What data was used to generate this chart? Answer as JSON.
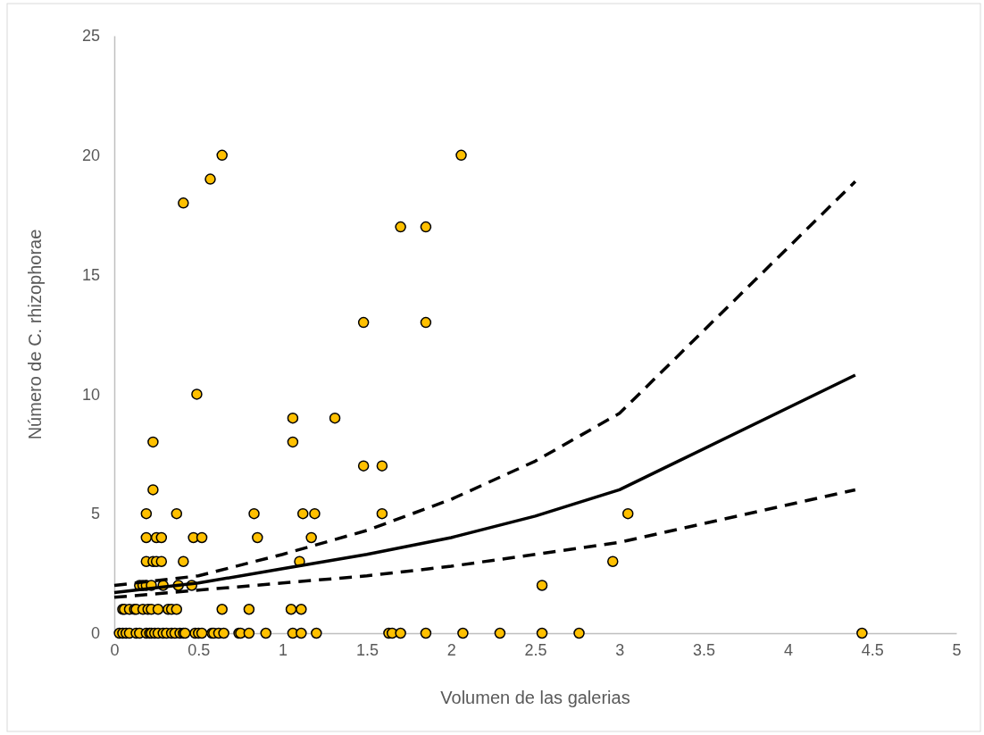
{
  "chart_data": {
    "type": "scatter",
    "xlabel": "Volumen de las galerias",
    "ylabel": "Número de C. rhizophorae",
    "xlim": [
      0,
      5
    ],
    "xticks": [
      0,
      0.5,
      1,
      1.5,
      2,
      2.5,
      3,
      3.5,
      4,
      4.5,
      5
    ],
    "ylim": [
      0,
      25
    ],
    "yticks": [
      0,
      5,
      10,
      15,
      20,
      25
    ],
    "grid": false,
    "series": [
      {
        "color": "#ffc000",
        "marker": "circle",
        "x": [
          0.64,
          2.06,
          0.57,
          0.41,
          1.7,
          1.85,
          1.48,
          1.85,
          0.49,
          1.06,
          1.31,
          0.23,
          1.06,
          1.48,
          1.59,
          0.23,
          0.19,
          0.37,
          0.83,
          1.12,
          1.19,
          1.59,
          3.05,
          0.19,
          0.25,
          0.28,
          0.47,
          0.52,
          0.85,
          1.17,
          0.19,
          0.23,
          0.25,
          0.28,
          0.41,
          1.1,
          2.96,
          0.15,
          0.17,
          0.19,
          0.22,
          0.29,
          0.38,
          0.46,
          2.54,
          0.05,
          0.06,
          0.09,
          0.12,
          0.13,
          0.17,
          0.2,
          0.22,
          0.26,
          0.32,
          0.34,
          0.37,
          0.64,
          0.8,
          1.05,
          1.11,
          0.03,
          0.05,
          0.07,
          0.09,
          0.13,
          0.15,
          0.19,
          0.21,
          0.22,
          0.24,
          0.26,
          0.29,
          0.31,
          0.34,
          0.36,
          0.39,
          0.41,
          0.42,
          0.48,
          0.5,
          0.52,
          0.58,
          0.59,
          0.62,
          0.65,
          0.74,
          0.75,
          0.8,
          0.9,
          1.06,
          1.11,
          1.2,
          1.63,
          1.65,
          1.7,
          1.85,
          2.07,
          2.29,
          2.54,
          2.76,
          4.44
        ],
        "values": [
          20,
          20,
          19,
          18,
          17,
          17,
          13,
          13,
          10,
          9,
          9,
          8,
          8,
          7,
          7,
          6,
          5,
          5,
          5,
          5,
          5,
          5,
          5,
          4,
          4,
          4,
          4,
          4,
          4,
          4,
          3,
          3,
          3,
          3,
          3,
          3,
          3,
          2,
          2,
          2,
          2,
          2,
          2,
          2,
          2,
          1,
          1,
          1,
          1,
          1,
          1,
          1,
          1,
          1,
          1,
          1,
          1,
          1,
          1,
          1,
          1,
          0,
          0,
          0,
          0,
          0,
          0,
          0,
          0,
          0,
          0,
          0,
          0,
          0,
          0,
          0,
          0,
          0,
          0,
          0,
          0,
          0,
          0,
          0,
          0,
          0,
          0,
          0,
          0,
          0,
          0,
          0,
          0,
          0,
          0,
          0,
          0,
          0,
          0,
          0,
          0,
          0
        ]
      },
      {
        "type": "line",
        "color": "#000000",
        "marker": "none",
        "line_style": "solid",
        "x": [
          0,
          0.5,
          1,
          1.5,
          2,
          2.5,
          3,
          4.4
        ],
        "values": [
          1.7,
          2.1,
          2.7,
          3.3,
          4.0,
          4.9,
          6.0,
          10.8
        ]
      },
      {
        "type": "line",
        "color": "#000000",
        "marker": "none",
        "line_style": "dashed",
        "x": [
          0,
          0.5,
          1,
          1.5,
          2,
          2.5,
          3,
          4.4
        ],
        "values": [
          2.0,
          2.4,
          3.3,
          4.3,
          5.6,
          7.2,
          9.2,
          18.9
        ]
      },
      {
        "type": "line",
        "color": "#000000",
        "marker": "none",
        "line_style": "dashed",
        "x": [
          0,
          0.5,
          1,
          1.5,
          2,
          2.5,
          3,
          4.4
        ],
        "values": [
          1.5,
          1.8,
          2.1,
          2.4,
          2.8,
          3.3,
          3.8,
          6.0
        ]
      }
    ]
  }
}
